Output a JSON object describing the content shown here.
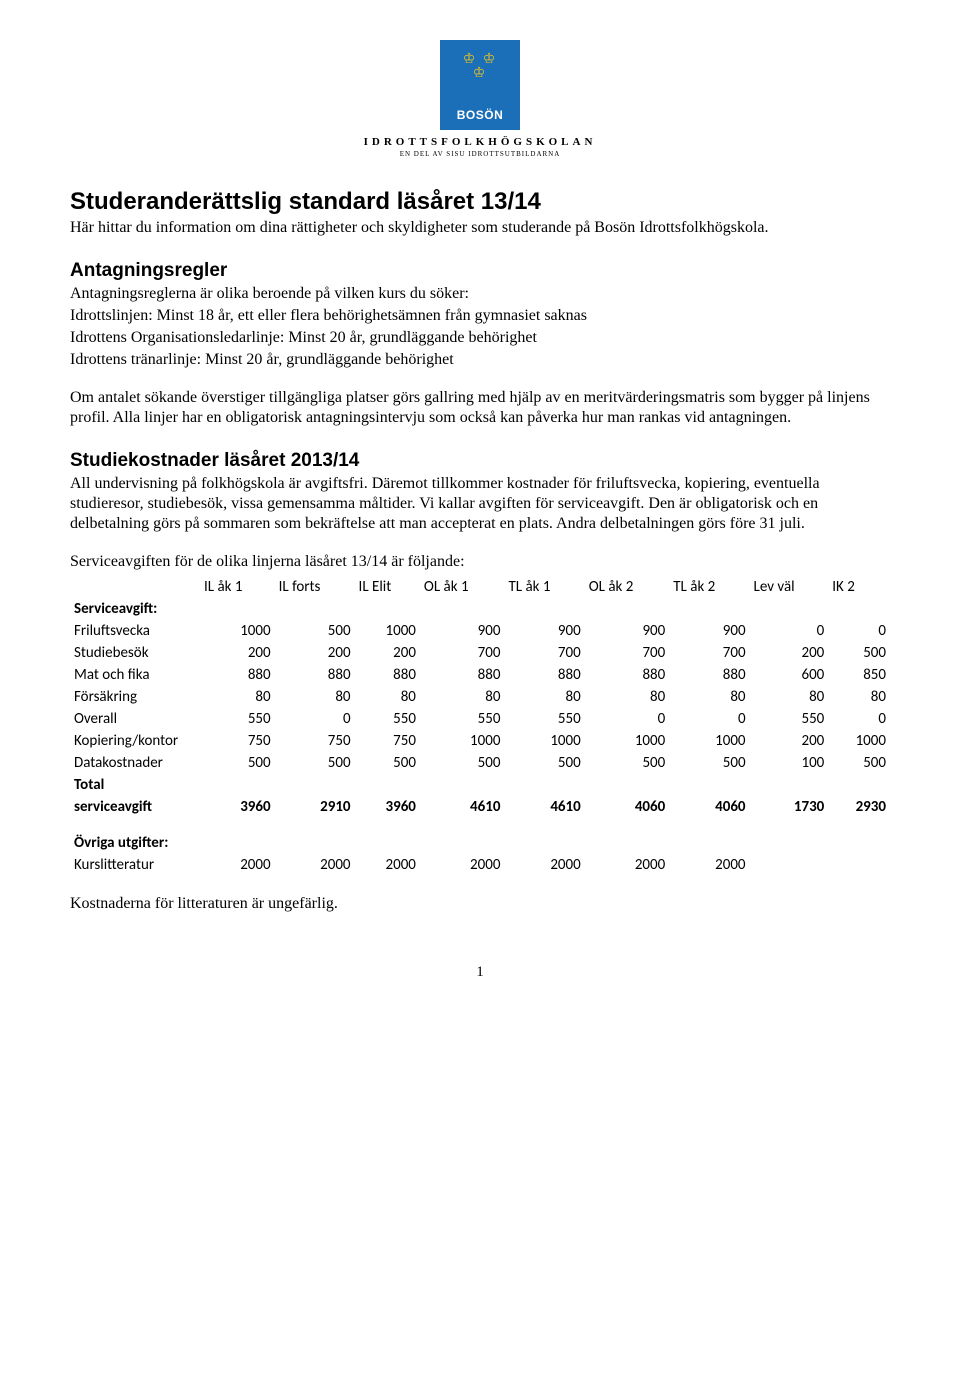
{
  "logo": {
    "brand": "BOSÖN",
    "school": "IDROTTSFOLKHÖGSKOLAN",
    "subtitle": "EN DEL AV SISU IDROTTSUTBILDARNA"
  },
  "title": "Studeranderättslig standard läsåret 13/14",
  "intro": "Här hittar du information om dina rättigheter och skyldigheter som studerande på Bosön Idrottsfolkhögskola.",
  "sections": {
    "admission": {
      "heading": "Antagningsregler",
      "p1": "Antagningsreglerna är olika beroende på vilken kurs du söker:",
      "p2": "Idrottslinjen: Minst 18 år, ett eller flera behörighetsämnen från gymnasiet saknas",
      "p3": "Idrottens Organisationsledarlinje: Minst 20 år, grundläggande behörighet",
      "p4": "Idrottens tränarlinje: Minst 20 år, grundläggande behörighet",
      "p5": "Om antalet sökande överstiger tillgängliga platser görs gallring med hjälp av en meritvärderingsmatris som bygger på linjens profil. Alla linjer har en obligatorisk antagningsintervju som också kan påverka hur man rankas vid antagningen."
    },
    "costs": {
      "heading": "Studiekostnader läsåret 2013/14",
      "p1": "All undervisning på folkhögskola är avgiftsfri. Däremot tillkommer kostnader för friluftsvecka, kopiering, eventuella studieresor, studiebesök, vissa gemensamma måltider. Vi kallar avgiften för serviceavgift. Den är obligatorisk och en delbetalning görs på sommaren som bekräftelse att man accepterat en plats. Andra delbetalningen görs före 31 juli.",
      "lead": "Serviceavgiften för de olika linjerna läsåret 13/14 är följande:"
    }
  },
  "table": {
    "columns": [
      "IL åk 1",
      "IL forts",
      "IL Elit",
      "OL åk 1",
      "TL åk 1",
      "OL åk 2",
      "TL åk 2",
      "Lev väl",
      "IK 2"
    ],
    "section1": "Serviceavgift:",
    "rows1": [
      {
        "label": "Friluftsvecka",
        "v": [
          1000,
          500,
          1000,
          900,
          900,
          900,
          900,
          0,
          0
        ]
      },
      {
        "label": "Studiebesök",
        "v": [
          200,
          200,
          200,
          700,
          700,
          700,
          700,
          200,
          500
        ]
      },
      {
        "label": "Mat och fika",
        "v": [
          880,
          880,
          880,
          880,
          880,
          880,
          880,
          600,
          850
        ]
      },
      {
        "label": "Försäkring",
        "v": [
          80,
          80,
          80,
          80,
          80,
          80,
          80,
          80,
          80
        ]
      },
      {
        "label": "Overall",
        "v": [
          550,
          0,
          550,
          550,
          550,
          0,
          0,
          550,
          0
        ]
      },
      {
        "label": "Kopiering/kontor",
        "v": [
          750,
          750,
          750,
          1000,
          1000,
          1000,
          1000,
          200,
          1000
        ]
      },
      {
        "label": "Datakostnader",
        "v": [
          500,
          500,
          500,
          500,
          500,
          500,
          500,
          100,
          500
        ]
      }
    ],
    "total": {
      "label1": "Total",
      "label2": "serviceavgift",
      "v": [
        3960,
        2910,
        3960,
        4610,
        4610,
        4060,
        4060,
        1730,
        2930
      ]
    },
    "section2": "Övriga utgifter:",
    "rows2": [
      {
        "label": "Kurslitteratur",
        "v": [
          2000,
          2000,
          2000,
          2000,
          2000,
          2000,
          2000,
          null,
          null
        ]
      }
    ]
  },
  "footnote": "Kostnaderna för litteraturen är ungefärlig.",
  "page_number": "1"
}
